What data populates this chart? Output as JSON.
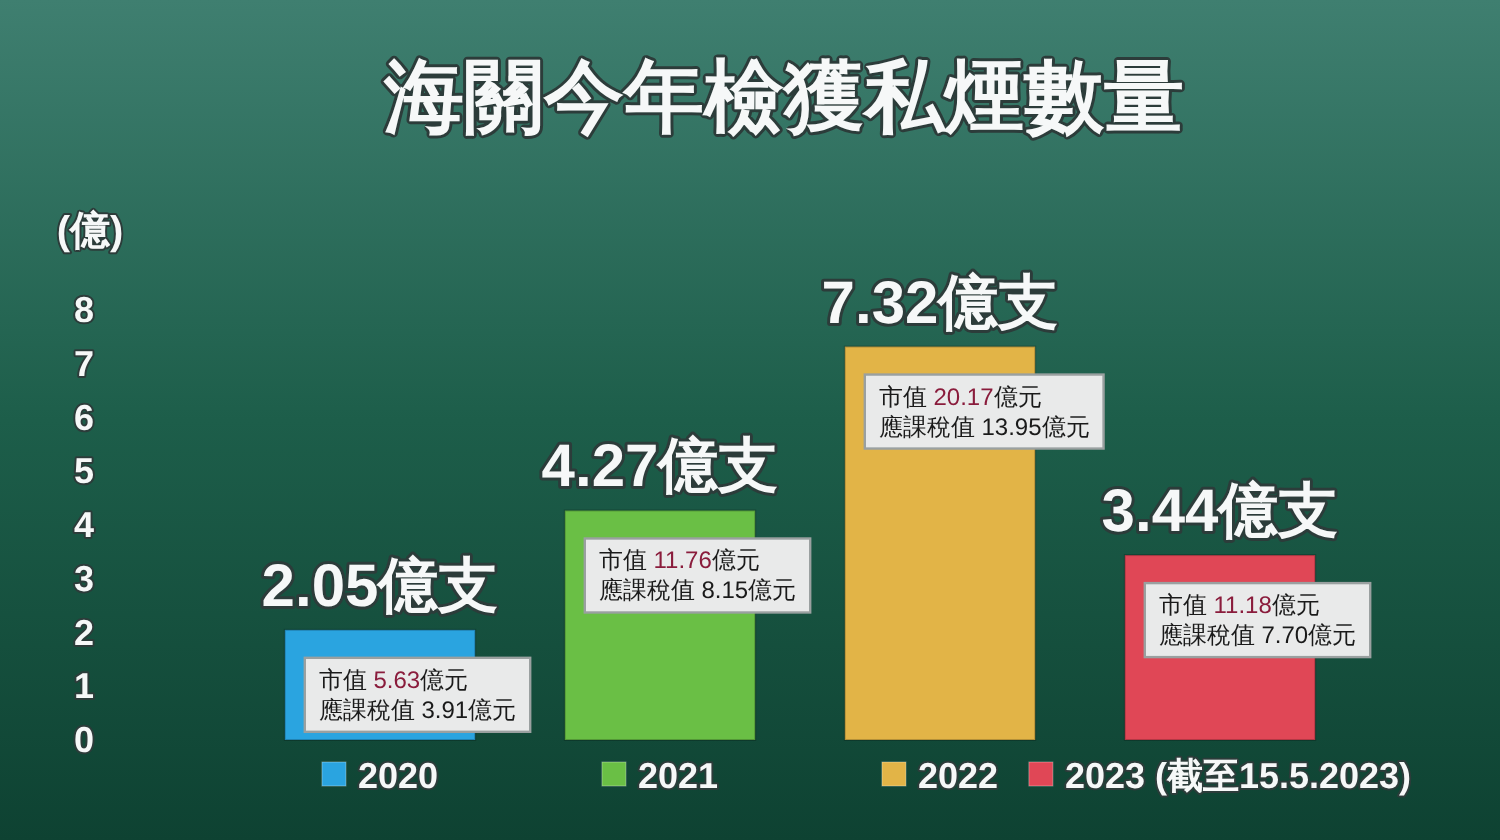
{
  "chart_data": {
    "type": "bar",
    "title": "海關今年檢獲私煙數量",
    "ylabel": "(億)",
    "categories": [
      "2020",
      "2021",
      "2022",
      "2023 (截至15.5.2023)"
    ],
    "values": [
      2.05,
      4.27,
      7.32,
      3.44
    ],
    "colors": [
      "#2aa4e0",
      "#6abf45",
      "#e2b447",
      "#e04756"
    ],
    "value_labels": [
      "2.05億支",
      "4.27億支",
      "7.32億支",
      "3.44億支"
    ],
    "ylim": [
      0,
      8
    ],
    "yticks": [
      0,
      1,
      2,
      3,
      4,
      5,
      6,
      7,
      8
    ],
    "annotations": [
      {
        "text": "市值 5.63億元",
        "x": "2020",
        "y": 2.05
      },
      {
        "text": "應課稅值 3.91億元",
        "x": "2020",
        "y": 2.05
      },
      {
        "text": "市值 11.76億元",
        "x": "2021",
        "y": 4.27
      },
      {
        "text": "應課稅值 8.15億元",
        "x": "2021",
        "y": 4.27
      },
      {
        "text": "市值 20.17億元",
        "x": "2022",
        "y": 7.32
      },
      {
        "text": "應課稅值 13.95億元",
        "x": "2022",
        "y": 7.32
      },
      {
        "text": "市值 11.18億元",
        "x": "2023 (截至15.5.2023)",
        "y": 3.44
      },
      {
        "text": "應課稅值 7.70億元",
        "x": "2023 (截至15.5.2023)",
        "y": 3.44
      }
    ]
  }
}
